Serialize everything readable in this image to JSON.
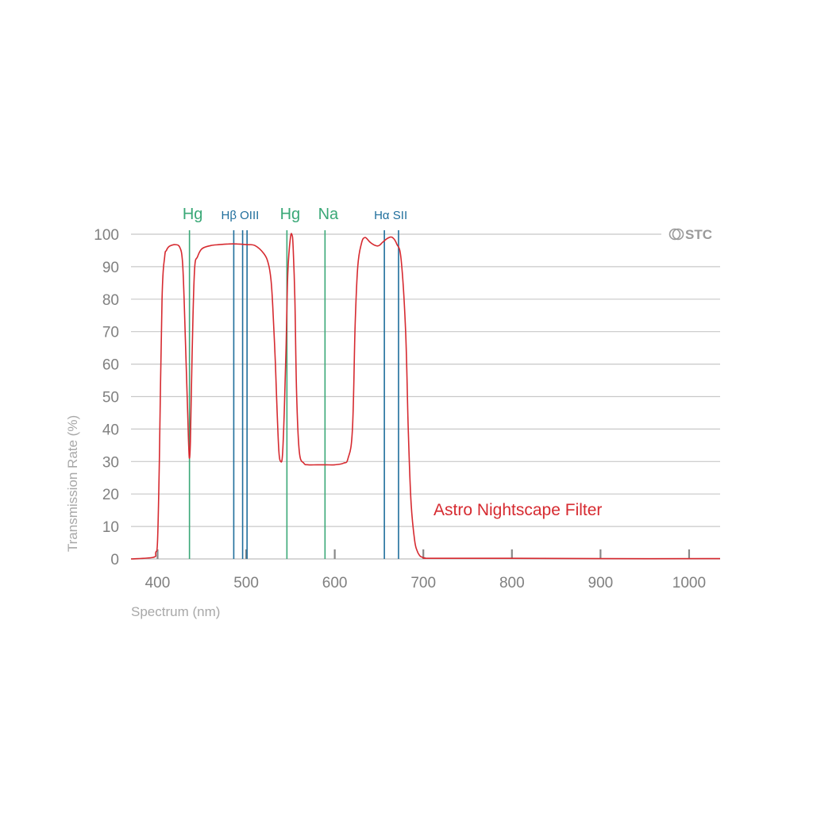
{
  "chart_data": {
    "type": "line",
    "xlabel": "Spectrum (nm)",
    "ylabel": "Transmission Rate (%)",
    "xlim": [
      370,
      1035
    ],
    "ylim": [
      0,
      100
    ],
    "x_ticks": [
      400,
      500,
      600,
      700,
      800,
      900,
      1000
    ],
    "y_ticks": [
      0,
      10,
      20,
      30,
      40,
      50,
      60,
      70,
      80,
      90,
      100
    ],
    "grid": true,
    "brand": "STC",
    "colors": {
      "series": "#d62a30",
      "hg_na_lines": "#3aa877",
      "nebula_lines": "#1f6e9c",
      "grid": "#c8c8c8"
    },
    "emission_lines": [
      {
        "name": "Hg",
        "x": 436,
        "color": "#3aa877",
        "label": "Hg"
      },
      {
        "name": "Hβ",
        "x": 486,
        "color": "#1f6e9c",
        "label": "Hβ OIII"
      },
      {
        "name": "OIII",
        "x": 496,
        "color": "#1f6e9c",
        "label": ""
      },
      {
        "name": "OIII",
        "x": 501,
        "color": "#1f6e9c",
        "label": ""
      },
      {
        "name": "Hg",
        "x": 546,
        "color": "#3aa877",
        "label": "Hg"
      },
      {
        "name": "Na",
        "x": 589,
        "color": "#3aa877",
        "label": "Na"
      },
      {
        "name": "Hα",
        "x": 656,
        "color": "#1f6e9c",
        "label": "Hα SII"
      },
      {
        "name": "SII",
        "x": 672,
        "color": "#1f6e9c",
        "label": ""
      }
    ],
    "series": [
      {
        "name": "Astro Nightscape Filter",
        "x": [
          370,
          395,
          398,
          400,
          402,
          405,
          408,
          410,
          412,
          415,
          420,
          425,
          428,
          430,
          432,
          434,
          435,
          436,
          437,
          438,
          440,
          442,
          445,
          450,
          460,
          470,
          480,
          490,
          500,
          510,
          520,
          525,
          528,
          530,
          533,
          535,
          537,
          539,
          541,
          543,
          545,
          547,
          550,
          552,
          553,
          555,
          557,
          560,
          565,
          570,
          580,
          590,
          600,
          610,
          615,
          620,
          623,
          626,
          630,
          634,
          640,
          646,
          650,
          654,
          660,
          665,
          670,
          675,
          680,
          683,
          686,
          690,
          693,
          696,
          698,
          700,
          702,
          710,
          800,
          900,
          1035
        ],
        "y": [
          0,
          0.5,
          2,
          6,
          30,
          80,
          93,
          95,
          96,
          96.5,
          96.8,
          96,
          92,
          80,
          62,
          45,
          36,
          31,
          36,
          50,
          75,
          90,
          93,
          95.5,
          96.5,
          96.8,
          97,
          97,
          96.8,
          96.5,
          94,
          91,
          86,
          78,
          60,
          45,
          33,
          30,
          32,
          45,
          65,
          88,
          99,
          99.5,
          96,
          80,
          50,
          33,
          29.5,
          29,
          29,
          29,
          29,
          29.5,
          31,
          40,
          72,
          90,
          97,
          99,
          97.5,
          96.5,
          96.5,
          97.5,
          98.8,
          99,
          97,
          92,
          70,
          40,
          18,
          6,
          2.5,
          1,
          0.6,
          0.4,
          0.3,
          0.2,
          0.2,
          0.1,
          0.1
        ]
      }
    ]
  }
}
